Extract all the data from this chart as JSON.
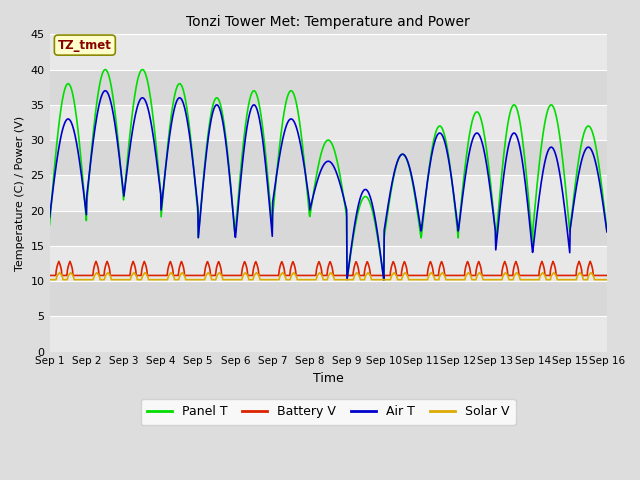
{
  "title": "Tonzi Tower Met: Temperature and Power",
  "xlabel": "Time",
  "ylabel": "Temperature (C) / Power (V)",
  "ylim": [
    0,
    45
  ],
  "yticks": [
    0,
    5,
    10,
    15,
    20,
    25,
    30,
    35,
    40,
    45
  ],
  "xlim": [
    0,
    15
  ],
  "xtick_labels": [
    "Sep 1",
    "Sep 2",
    "Sep 3",
    "Sep 4",
    "Sep 5",
    "Sep 6",
    "Sep 7",
    "Sep 8",
    "Sep 9",
    "Sep 10",
    "Sep 11",
    "Sep 12",
    "Sep 13",
    "Sep 14",
    "Sep 15",
    "Sep 16"
  ],
  "annotation_text": "TZ_tmet",
  "annotation_color": "#880000",
  "annotation_bg": "#ffffcc",
  "annotation_border": "#888800",
  "legend_labels": [
    "Panel T",
    "Battery V",
    "Air T",
    "Solar V"
  ],
  "legend_colors": [
    "#00dd00",
    "#dd2200",
    "#0000cc",
    "#ddaa00"
  ],
  "bg_color": "#dddddd",
  "plot_bg_light": "#e8e8e8",
  "plot_bg_dark": "#d8d8d8",
  "grid_color": "#ffffff",
  "panel_peaks": [
    38,
    40,
    40,
    38,
    36,
    37,
    37,
    30,
    22,
    28,
    32,
    34,
    35,
    35,
    32
  ],
  "panel_troughs": [
    18,
    21,
    22,
    19,
    16,
    17,
    19,
    19,
    10,
    16,
    16,
    17,
    15,
    17,
    17
  ],
  "air_peaks": [
    33,
    37,
    36,
    36,
    35,
    35,
    33,
    27,
    23,
    28,
    31,
    31,
    31,
    29,
    29
  ],
  "air_troughs": [
    19,
    22,
    22,
    20,
    16,
    16,
    21,
    20,
    10,
    17,
    17,
    17,
    14,
    14,
    17
  ],
  "battery_base": 10.8,
  "battery_spike": 12.8,
  "solar_base": 10.2,
  "solar_spike": 11.2
}
